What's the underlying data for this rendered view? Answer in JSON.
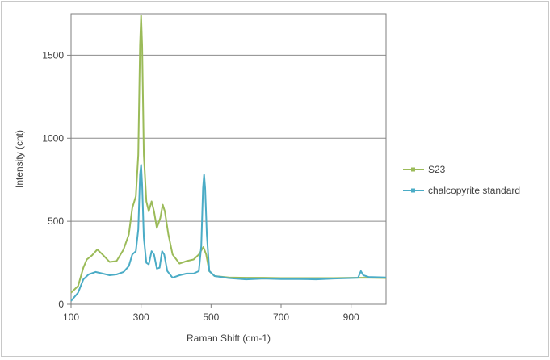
{
  "chart_data": {
    "type": "line",
    "title": "",
    "xlabel": "Raman Shift (cm-1)",
    "ylabel": "Intensity (cnt)",
    "xlim": [
      100,
      1000
    ],
    "ylim": [
      0,
      1750
    ],
    "x_ticks": [
      100,
      300,
      500,
      700,
      900
    ],
    "y_ticks": [
      0,
      500,
      1000,
      1500
    ],
    "grid": "horizontal",
    "legend_position": "right",
    "series": [
      {
        "name": "S23",
        "color": "#9bbb59",
        "points": [
          [
            100,
            70
          ],
          [
            120,
            110
          ],
          [
            135,
            220
          ],
          [
            145,
            270
          ],
          [
            160,
            295
          ],
          [
            175,
            330
          ],
          [
            190,
            300
          ],
          [
            210,
            255
          ],
          [
            230,
            260
          ],
          [
            250,
            330
          ],
          [
            265,
            420
          ],
          [
            275,
            580
          ],
          [
            285,
            650
          ],
          [
            292,
            900
          ],
          [
            297,
            1560
          ],
          [
            300,
            1740
          ],
          [
            303,
            1560
          ],
          [
            308,
            900
          ],
          [
            315,
            620
          ],
          [
            322,
            560
          ],
          [
            330,
            620
          ],
          [
            337,
            560
          ],
          [
            345,
            460
          ],
          [
            355,
            520
          ],
          [
            362,
            600
          ],
          [
            368,
            560
          ],
          [
            378,
            420
          ],
          [
            390,
            300
          ],
          [
            410,
            245
          ],
          [
            430,
            260
          ],
          [
            450,
            270
          ],
          [
            465,
            300
          ],
          [
            478,
            345
          ],
          [
            486,
            300
          ],
          [
            495,
            200
          ],
          [
            510,
            170
          ],
          [
            550,
            162
          ],
          [
            600,
            160
          ],
          [
            650,
            160
          ],
          [
            700,
            158
          ],
          [
            750,
            158
          ],
          [
            800,
            158
          ],
          [
            850,
            158
          ],
          [
            900,
            160
          ],
          [
            950,
            160
          ],
          [
            1000,
            158
          ]
        ]
      },
      {
        "name": "chalcopyrite standard",
        "color": "#4bacc6",
        "points": [
          [
            100,
            20
          ],
          [
            120,
            70
          ],
          [
            135,
            150
          ],
          [
            150,
            180
          ],
          [
            170,
            195
          ],
          [
            190,
            185
          ],
          [
            210,
            175
          ],
          [
            230,
            180
          ],
          [
            250,
            195
          ],
          [
            265,
            230
          ],
          [
            275,
            300
          ],
          [
            285,
            320
          ],
          [
            292,
            450
          ],
          [
            297,
            780
          ],
          [
            300,
            840
          ],
          [
            303,
            720
          ],
          [
            308,
            400
          ],
          [
            315,
            250
          ],
          [
            322,
            240
          ],
          [
            330,
            320
          ],
          [
            337,
            300
          ],
          [
            345,
            215
          ],
          [
            353,
            220
          ],
          [
            360,
            320
          ],
          [
            366,
            300
          ],
          [
            375,
            200
          ],
          [
            390,
            160
          ],
          [
            410,
            175
          ],
          [
            430,
            185
          ],
          [
            450,
            185
          ],
          [
            465,
            200
          ],
          [
            472,
            350
          ],
          [
            477,
            700
          ],
          [
            480,
            780
          ],
          [
            483,
            700
          ],
          [
            488,
            420
          ],
          [
            495,
            200
          ],
          [
            510,
            170
          ],
          [
            550,
            158
          ],
          [
            600,
            150
          ],
          [
            650,
            155
          ],
          [
            700,
            152
          ],
          [
            750,
            152
          ],
          [
            800,
            150
          ],
          [
            850,
            155
          ],
          [
            900,
            158
          ],
          [
            920,
            160
          ],
          [
            928,
            200
          ],
          [
            935,
            175
          ],
          [
            950,
            165
          ],
          [
            1000,
            162
          ]
        ]
      }
    ]
  }
}
